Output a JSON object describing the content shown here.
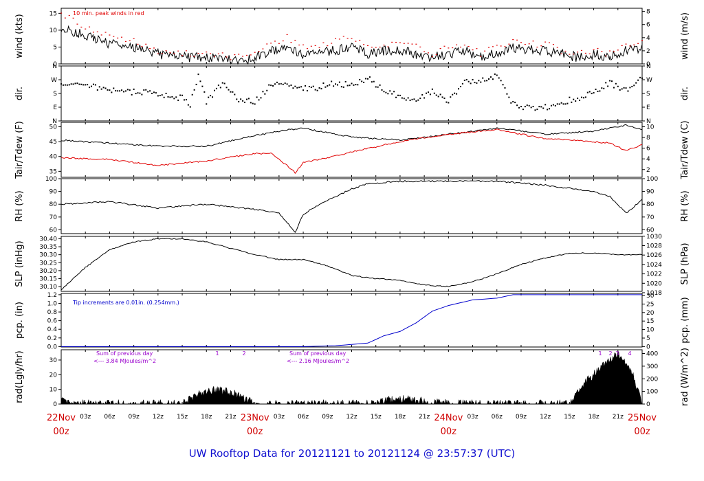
{
  "title": "UW Rooftop Data for 20121121  to  20121124 @ 23:57:37  (UTC)",
  "colors": {
    "black": "#000000",
    "red": "#e00000",
    "blue": "#0000cc",
    "purple": "#9900cc",
    "day": "#d00000",
    "title": "#1010d0"
  },
  "x_axis": {
    "hour_ticks": [
      "03z",
      "06z",
      "09z",
      "12z",
      "15z",
      "18z",
      "21z",
      "03z",
      "06z",
      "09z",
      "12z",
      "15z",
      "18z",
      "21z",
      "03z",
      "06z",
      "09z",
      "12z",
      "15z",
      "18z",
      "21z"
    ],
    "days": [
      {
        "date": "22Nov",
        "hour": "00z"
      },
      {
        "date": "23Nov",
        "hour": "00z"
      },
      {
        "date": "24Nov",
        "hour": "00z"
      },
      {
        "date": "25Nov",
        "hour": "00z"
      }
    ]
  },
  "chart_data": [
    {
      "type": "line",
      "panel": "wind",
      "ylabel_left": "wind (kts)",
      "ylabel_right": "wind (m/s)",
      "yticks_left": [
        "0",
        "5",
        "10",
        "15"
      ],
      "yticks_right": [
        "0",
        "2",
        "4",
        "6",
        "8"
      ],
      "ylim": [
        0,
        16.5
      ],
      "annotation": "10 min. peak winds in red",
      "series": [
        {
          "name": "wind",
          "color": "#000000",
          "x_hours": [
            0,
            2,
            4,
            6,
            9,
            12,
            15,
            17,
            19,
            21,
            23,
            24,
            26,
            28,
            30,
            32,
            34,
            36,
            38,
            40,
            42,
            44,
            46,
            48,
            50,
            52,
            54,
            56,
            58,
            60,
            62,
            64,
            66,
            68,
            70,
            72
          ],
          "values": [
            11,
            9,
            8,
            6,
            5,
            3,
            2,
            2,
            2,
            1,
            1,
            2,
            4,
            5,
            3,
            3,
            4,
            5,
            3,
            4,
            4,
            3,
            2,
            3,
            4,
            2,
            3,
            5,
            4,
            4,
            3,
            2,
            3,
            2,
            4,
            5
          ]
        },
        {
          "name": "10 min peak",
          "color": "#e00000",
          "x_hours": [
            0,
            2,
            4,
            6,
            9,
            12,
            15,
            17,
            19,
            21,
            23,
            24,
            26,
            28,
            30,
            32,
            34,
            36,
            38,
            40,
            42,
            44,
            46,
            48,
            50,
            52,
            54,
            56,
            58,
            60,
            62,
            64,
            66,
            68,
            70,
            72
          ],
          "values": [
            15,
            12,
            10,
            8,
            7,
            4,
            3,
            3,
            3,
            2,
            2,
            3,
            6,
            8,
            5,
            5,
            7,
            8,
            5,
            6,
            6,
            5,
            3,
            5,
            6,
            3,
            5,
            7,
            6,
            6,
            4,
            3,
            4,
            3,
            6,
            7
          ]
        }
      ]
    },
    {
      "type": "scatter",
      "panel": "dir",
      "ylabel_left": "dir.",
      "ylabel_right": "dir.",
      "yticks_left": [
        "N",
        "E",
        "S",
        "W",
        "N"
      ],
      "yticks_right": [
        "N",
        "E",
        "S",
        "W",
        "N"
      ],
      "ylim": [
        0,
        360
      ],
      "x_hours": [
        0,
        3,
        6,
        9,
        12,
        15,
        16,
        17,
        18,
        20,
        22,
        24,
        26,
        28,
        30,
        32,
        34,
        36,
        38,
        40,
        42,
        44,
        46,
        48,
        50,
        52,
        54,
        56,
        58,
        60,
        62,
        64,
        66,
        68,
        70,
        72
      ],
      "values": [
        240,
        235,
        200,
        190,
        180,
        150,
        110,
        300,
        130,
        250,
        140,
        130,
        230,
        240,
        210,
        220,
        250,
        230,
        280,
        200,
        160,
        130,
        190,
        130,
        250,
        270,
        300,
        110,
        80,
        90,
        120,
        150,
        180,
        250,
        200,
        280
      ]
    },
    {
      "type": "line",
      "panel": "temp",
      "ylabel_left": "Tair/Tdew (F)",
      "ylabel_right": "Tair/Tdew (C)",
      "yticks_left": [
        "35",
        "40",
        "45",
        "50"
      ],
      "yticks_right": [
        "2",
        "4",
        "6",
        "8",
        "10"
      ],
      "ylim": [
        33,
        51.5
      ],
      "series": [
        {
          "name": "Tair",
          "color": "#000000",
          "x_hours": [
            0,
            6,
            12,
            18,
            24,
            28,
            30,
            32,
            36,
            42,
            48,
            54,
            56,
            60,
            66,
            70,
            72
          ],
          "values": [
            45.5,
            44.5,
            43.5,
            43.5,
            47,
            49,
            49.5,
            48.5,
            46.5,
            45.5,
            47.5,
            49.5,
            49,
            47.5,
            48.5,
            50.5,
            49
          ]
        },
        {
          "name": "Tdew",
          "color": "#e00000",
          "x_hours": [
            0,
            6,
            12,
            18,
            24,
            26,
            28,
            29,
            30,
            32,
            36,
            42,
            48,
            54,
            56,
            60,
            66,
            68,
            70,
            72
          ],
          "values": [
            39.5,
            39,
            37,
            38.5,
            41,
            41,
            37,
            34.5,
            38,
            39,
            41.5,
            45,
            47.5,
            49,
            48,
            46,
            45,
            44.5,
            42,
            44
          ]
        }
      ]
    },
    {
      "type": "line",
      "panel": "rh",
      "ylabel_left": "RH (%)",
      "ylabel_right": "RH (%)",
      "yticks_left": [
        "60",
        "70",
        "80",
        "90",
        "100"
      ],
      "yticks_right": [
        "60",
        "70",
        "80",
        "90",
        "100"
      ],
      "ylim": [
        57,
        100
      ],
      "series": [
        {
          "name": "RH",
          "color": "#000000",
          "x_hours": [
            0,
            6,
            12,
            18,
            24,
            27,
            29,
            30,
            32,
            36,
            38,
            42,
            48,
            54,
            60,
            66,
            68,
            70,
            71,
            72
          ],
          "values": [
            80,
            82,
            77,
            80,
            76,
            73,
            58,
            72,
            80,
            92,
            96,
            98,
            98,
            98,
            95,
            90,
            86,
            73,
            78,
            84
          ]
        }
      ]
    },
    {
      "type": "line",
      "panel": "slp",
      "ylabel_left": "SLP (inHg)",
      "ylabel_right": "SLP (hPa)",
      "yticks_left": [
        "30.10",
        "30.15",
        "30.20",
        "30.25",
        "30.30",
        "30.35",
        "30.40"
      ],
      "yticks_right": [
        "1018",
        "1020",
        "1022",
        "1024",
        "1026",
        "1028",
        "1030"
      ],
      "ylim": [
        30.07,
        30.415
      ],
      "series": [
        {
          "name": "SLP",
          "color": "#000000",
          "x_hours": [
            0,
            3,
            6,
            9,
            12,
            15,
            18,
            21,
            24,
            27,
            30,
            33,
            36,
            39,
            42,
            45,
            48,
            51,
            54,
            57,
            60,
            63,
            66,
            69,
            72
          ],
          "values": [
            30.08,
            30.22,
            30.33,
            30.38,
            30.4,
            30.4,
            30.38,
            30.34,
            30.3,
            30.27,
            30.27,
            30.23,
            30.17,
            30.15,
            30.14,
            30.11,
            30.1,
            30.13,
            30.18,
            30.24,
            30.28,
            30.31,
            30.31,
            30.3,
            30.3
          ]
        }
      ]
    },
    {
      "type": "line",
      "panel": "pcp",
      "ylabel_left": "pcp. (in)",
      "ylabel_right": "pcp. (mm)",
      "yticks_left": [
        "0.0",
        "0.2",
        "0.4",
        "0.6",
        "0.8",
        "1.0",
        "1.2"
      ],
      "yticks_right": [
        "0",
        "5",
        "10",
        "15",
        "20",
        "25",
        "30"
      ],
      "ylim": [
        -0.01,
        1.23
      ],
      "annotation": "Tip increments are 0.01in. (0.254mm.)",
      "series": [
        {
          "name": "pcp",
          "color": "#0000cc",
          "x_hours": [
            0,
            30,
            34,
            38,
            40,
            42,
            44,
            46,
            48,
            51,
            54,
            56,
            58,
            72
          ],
          "values": [
            0,
            0,
            0.02,
            0.08,
            0.25,
            0.35,
            0.55,
            0.82,
            0.95,
            1.08,
            1.12,
            1.2,
            1.2,
            1.2
          ]
        }
      ]
    },
    {
      "type": "area",
      "panel": "rad",
      "ylabel_left": "rad(Lgly/hr)",
      "ylabel_right": "rad (W/m^2)",
      "yticks_left": [
        "0",
        "10",
        "20",
        "30"
      ],
      "yticks_right": [
        "0",
        "100",
        "200",
        "300",
        "400"
      ],
      "ylim": [
        0,
        37
      ],
      "annotations": [
        {
          "label": "Sum of previous day",
          "value": "<--- 3.84 MJoules/m^2"
        },
        {
          "label": "Sum of previous day",
          "value": "<--- 2.16 MJoules/m^2"
        }
      ],
      "markers": [
        "1",
        "2",
        "1",
        "2",
        "3",
        "4"
      ],
      "series": [
        {
          "name": "rad",
          "color": "#000000",
          "x_hours": [
            0,
            1,
            15,
            16,
            17,
            18,
            19,
            20,
            21,
            22,
            23,
            24,
            39,
            40,
            41,
            42,
            43,
            44,
            45,
            46,
            47,
            48,
            63,
            64,
            65,
            66,
            67,
            68,
            69,
            70,
            71,
            72
          ],
          "values": [
            3,
            0,
            0,
            4,
            7,
            8,
            10,
            9,
            8,
            6,
            3,
            0,
            0,
            2,
            3,
            3,
            3,
            2,
            2,
            1,
            1,
            0,
            0,
            8,
            15,
            20,
            25,
            30,
            35,
            28,
            18,
            0
          ]
        }
      ]
    }
  ]
}
